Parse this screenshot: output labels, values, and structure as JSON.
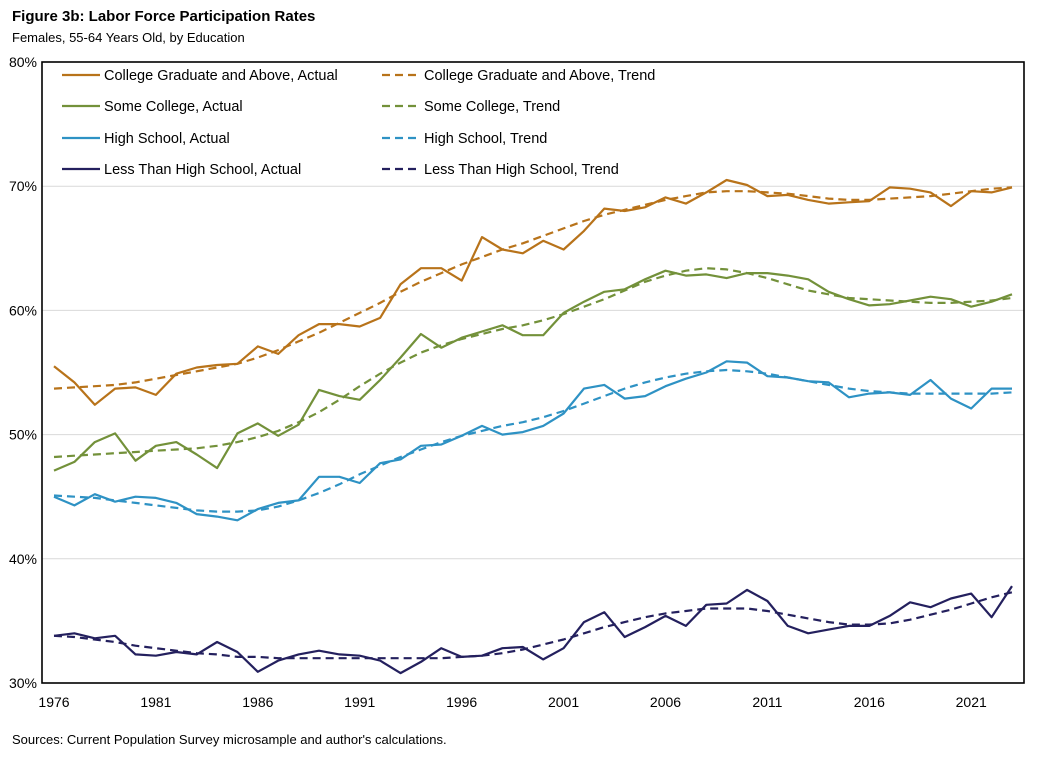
{
  "figure": {
    "title": "Figure 3b: Labor Force Participation Rates",
    "subtitle": "Females, 55-64 Years Old, by Education",
    "source": "Sources: Current Population Survey microsample and author's calculations."
  },
  "chart_data": {
    "type": "line",
    "title": "Figure 3b: Labor Force Participation Rates",
    "subtitle": "Females, 55-64 Years Old, by Education",
    "xlabel": "",
    "ylabel": "",
    "xlim": [
      1976,
      2023
    ],
    "ylim": [
      30,
      80
    ],
    "yticks": [
      30,
      40,
      50,
      60,
      70,
      80
    ],
    "ytick_labels": [
      "30%",
      "40%",
      "50%",
      "60%",
      "70%",
      "80%"
    ],
    "xticks": [
      1976,
      1981,
      1986,
      1991,
      1996,
      2001,
      2006,
      2011,
      2016,
      2021
    ],
    "xtick_labels": [
      "1976",
      "1981",
      "1986",
      "1991",
      "1996",
      "2001",
      "2006",
      "2011",
      "2016",
      "2021"
    ],
    "grid": "horizontal",
    "legend_position": "top-left, inside plot, two columns",
    "x": [
      1976,
      1977,
      1978,
      1979,
      1980,
      1981,
      1982,
      1983,
      1984,
      1985,
      1986,
      1987,
      1988,
      1989,
      1990,
      1991,
      1992,
      1993,
      1994,
      1995,
      1996,
      1997,
      1998,
      1999,
      2000,
      2001,
      2002,
      2003,
      2004,
      2005,
      2006,
      2007,
      2008,
      2009,
      2010,
      2011,
      2012,
      2013,
      2014,
      2015,
      2016,
      2017,
      2018,
      2019,
      2020,
      2021,
      2022,
      2023
    ],
    "series": [
      {
        "name": "College Graduate and Above, Actual",
        "color": "#b8731a",
        "dash": "solid",
        "values": [
          55.5,
          54.2,
          52.4,
          53.7,
          53.8,
          53.2,
          54.9,
          55.4,
          55.6,
          55.7,
          57.1,
          56.5,
          58.0,
          58.9,
          58.9,
          58.7,
          59.4,
          62.1,
          63.4,
          63.4,
          62.4,
          65.9,
          64.9,
          64.6,
          65.6,
          64.9,
          66.4,
          68.2,
          68.0,
          68.3,
          69.1,
          68.6,
          69.5,
          70.5,
          70.1,
          69.2,
          69.3,
          68.9,
          68.6,
          68.7,
          68.8,
          69.9,
          69.8,
          69.5,
          68.4,
          69.6,
          69.5,
          69.9
        ]
      },
      {
        "name": "College Graduate and Above, Trend",
        "color": "#b8731a",
        "dash": "dashed",
        "values": [
          53.7,
          53.8,
          53.9,
          54.0,
          54.2,
          54.5,
          54.8,
          55.1,
          55.4,
          55.7,
          56.2,
          56.8,
          57.5,
          58.2,
          59.0,
          59.8,
          60.6,
          61.5,
          62.3,
          63.0,
          63.7,
          64.3,
          64.9,
          65.4,
          66.0,
          66.6,
          67.2,
          67.7,
          68.1,
          68.5,
          68.9,
          69.2,
          69.5,
          69.6,
          69.6,
          69.5,
          69.4,
          69.2,
          69.0,
          68.9,
          68.9,
          69.0,
          69.1,
          69.2,
          69.4,
          69.6,
          69.8,
          69.9
        ]
      },
      {
        "name": "Some College, Actual",
        "color": "#73913a",
        "dash": "solid",
        "values": [
          47.1,
          47.8,
          49.4,
          50.1,
          47.9,
          49.1,
          49.4,
          48.4,
          47.3,
          50.1,
          50.9,
          49.9,
          50.8,
          53.6,
          53.1,
          52.8,
          54.4,
          56.2,
          58.1,
          57.0,
          57.8,
          58.3,
          58.8,
          58.0,
          58.0,
          59.8,
          60.7,
          61.5,
          61.7,
          62.5,
          63.2,
          62.8,
          62.9,
          62.6,
          63.0,
          63.0,
          62.8,
          62.5,
          61.5,
          60.9,
          60.4,
          60.5,
          60.8,
          61.1,
          60.9,
          60.3,
          60.7,
          61.3
        ]
      },
      {
        "name": "Some College, Trend",
        "color": "#73913a",
        "dash": "dashed",
        "values": [
          48.2,
          48.3,
          48.4,
          48.5,
          48.6,
          48.7,
          48.8,
          48.9,
          49.1,
          49.4,
          49.8,
          50.3,
          51.0,
          51.8,
          52.8,
          53.9,
          54.9,
          55.8,
          56.6,
          57.2,
          57.7,
          58.1,
          58.5,
          58.8,
          59.2,
          59.7,
          60.3,
          60.9,
          61.6,
          62.3,
          62.8,
          63.2,
          63.4,
          63.3,
          63.0,
          62.6,
          62.1,
          61.6,
          61.3,
          61.0,
          60.9,
          60.8,
          60.7,
          60.6,
          60.6,
          60.7,
          60.8,
          61.0
        ]
      },
      {
        "name": "High School, Actual",
        "color": "#2e92c4",
        "dash": "solid",
        "values": [
          45.0,
          44.3,
          45.2,
          44.6,
          45.0,
          44.9,
          44.5,
          43.6,
          43.4,
          43.1,
          44.0,
          44.5,
          44.7,
          46.6,
          46.6,
          46.1,
          47.7,
          48.0,
          49.1,
          49.2,
          49.9,
          50.7,
          50.0,
          50.2,
          50.7,
          51.7,
          53.7,
          54.0,
          52.9,
          53.1,
          53.9,
          54.5,
          55.0,
          55.9,
          55.8,
          54.7,
          54.6,
          54.3,
          54.2,
          53.0,
          53.3,
          53.4,
          53.2,
          54.4,
          52.9,
          52.1,
          53.7,
          53.7
        ]
      },
      {
        "name": "High School, Trend",
        "color": "#2e92c4",
        "dash": "dashed",
        "values": [
          45.1,
          45.0,
          44.9,
          44.7,
          44.5,
          44.3,
          44.1,
          43.9,
          43.8,
          43.8,
          43.9,
          44.2,
          44.7,
          45.3,
          46.0,
          46.8,
          47.5,
          48.2,
          48.8,
          49.4,
          49.9,
          50.3,
          50.7,
          51.0,
          51.4,
          51.9,
          52.5,
          53.1,
          53.7,
          54.2,
          54.6,
          54.9,
          55.1,
          55.2,
          55.1,
          54.9,
          54.6,
          54.3,
          54.0,
          53.7,
          53.5,
          53.4,
          53.3,
          53.3,
          53.3,
          53.3,
          53.3,
          53.4
        ]
      },
      {
        "name": "Less Than High School, Actual",
        "color": "#24205e",
        "dash": "solid",
        "values": [
          33.8,
          34.0,
          33.6,
          33.8,
          32.3,
          32.2,
          32.5,
          32.3,
          33.3,
          32.5,
          30.9,
          31.8,
          32.3,
          32.6,
          32.3,
          32.2,
          31.8,
          30.8,
          31.7,
          32.8,
          32.1,
          32.2,
          32.8,
          32.9,
          31.9,
          32.8,
          34.9,
          35.7,
          33.7,
          34.5,
          35.4,
          34.6,
          36.3,
          36.4,
          37.5,
          36.6,
          34.6,
          34.0,
          34.3,
          34.6,
          34.6,
          35.4,
          36.5,
          36.1,
          36.8,
          37.2,
          35.3,
          37.8
        ]
      },
      {
        "name": "Less Than High School, Trend",
        "color": "#24205e",
        "dash": "dashed",
        "values": [
          33.8,
          33.7,
          33.5,
          33.3,
          33.0,
          32.8,
          32.6,
          32.4,
          32.3,
          32.1,
          32.1,
          32.0,
          32.0,
          32.0,
          32.0,
          32.0,
          32.0,
          32.0,
          32.0,
          32.0,
          32.1,
          32.2,
          32.4,
          32.7,
          33.1,
          33.5,
          34.0,
          34.5,
          34.9,
          35.3,
          35.6,
          35.8,
          36.0,
          36.0,
          36.0,
          35.8,
          35.5,
          35.2,
          34.9,
          34.7,
          34.7,
          34.8,
          35.1,
          35.5,
          35.9,
          36.4,
          36.9,
          37.3
        ]
      }
    ]
  }
}
